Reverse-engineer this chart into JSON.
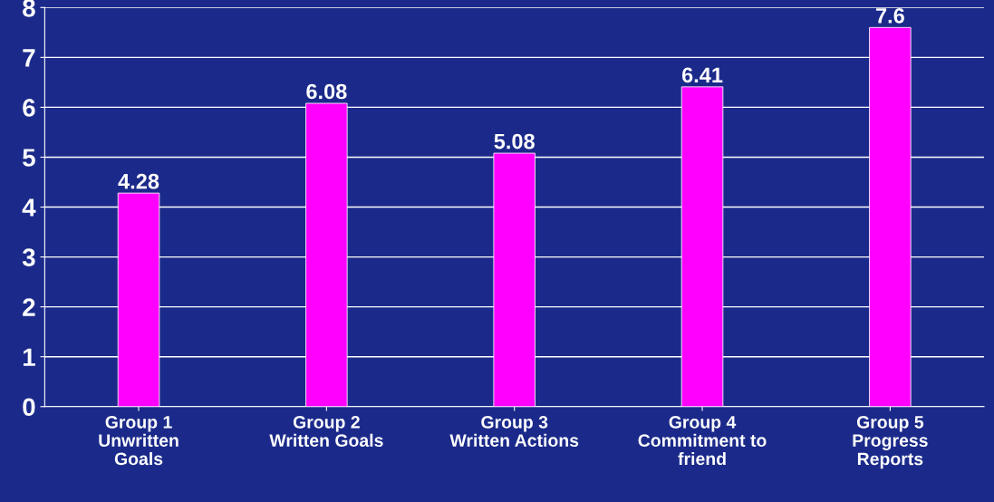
{
  "chart_data": {
    "type": "bar",
    "categories": [
      "Group 1\nUnwritten\nGoals",
      "Group 2\nWritten Goals",
      "Group 3\nWritten Actions",
      "Group 4\nCommitment to\nfriend",
      "Group 5\nProgress\nReports"
    ],
    "values": [
      4.28,
      6.08,
      5.08,
      6.41,
      7.6
    ],
    "color": "#ff00ff",
    "ylim": [
      0,
      8
    ],
    "yticks": [
      0,
      1,
      2,
      3,
      4,
      5,
      6,
      7,
      8
    ],
    "grid": "y",
    "data_labels": true
  }
}
